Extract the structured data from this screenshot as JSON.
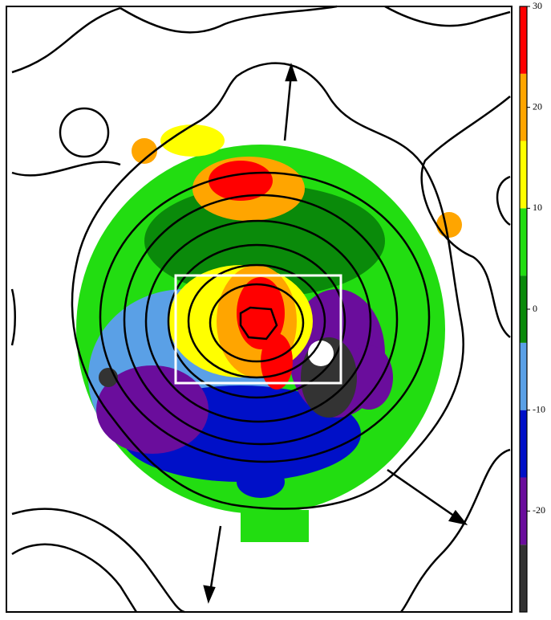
{
  "chart_data": {
    "type": "colormap",
    "colorbar": {
      "lim": [
        -30,
        30
      ],
      "ticks": [
        30,
        20,
        10,
        0,
        -10,
        -20
      ],
      "bounds": [
        -30,
        -23.33,
        -16.67,
        -10,
        -3.33,
        3.33,
        10,
        16.67,
        23.33,
        30
      ],
      "colors": [
        "#333333",
        "#6a0d9c",
        "#0010c8",
        "#5aa0e6",
        "#0a8a0a",
        "#22dd11",
        "#ffff00",
        "#ffa500",
        "#ff0000"
      ]
    }
  }
}
